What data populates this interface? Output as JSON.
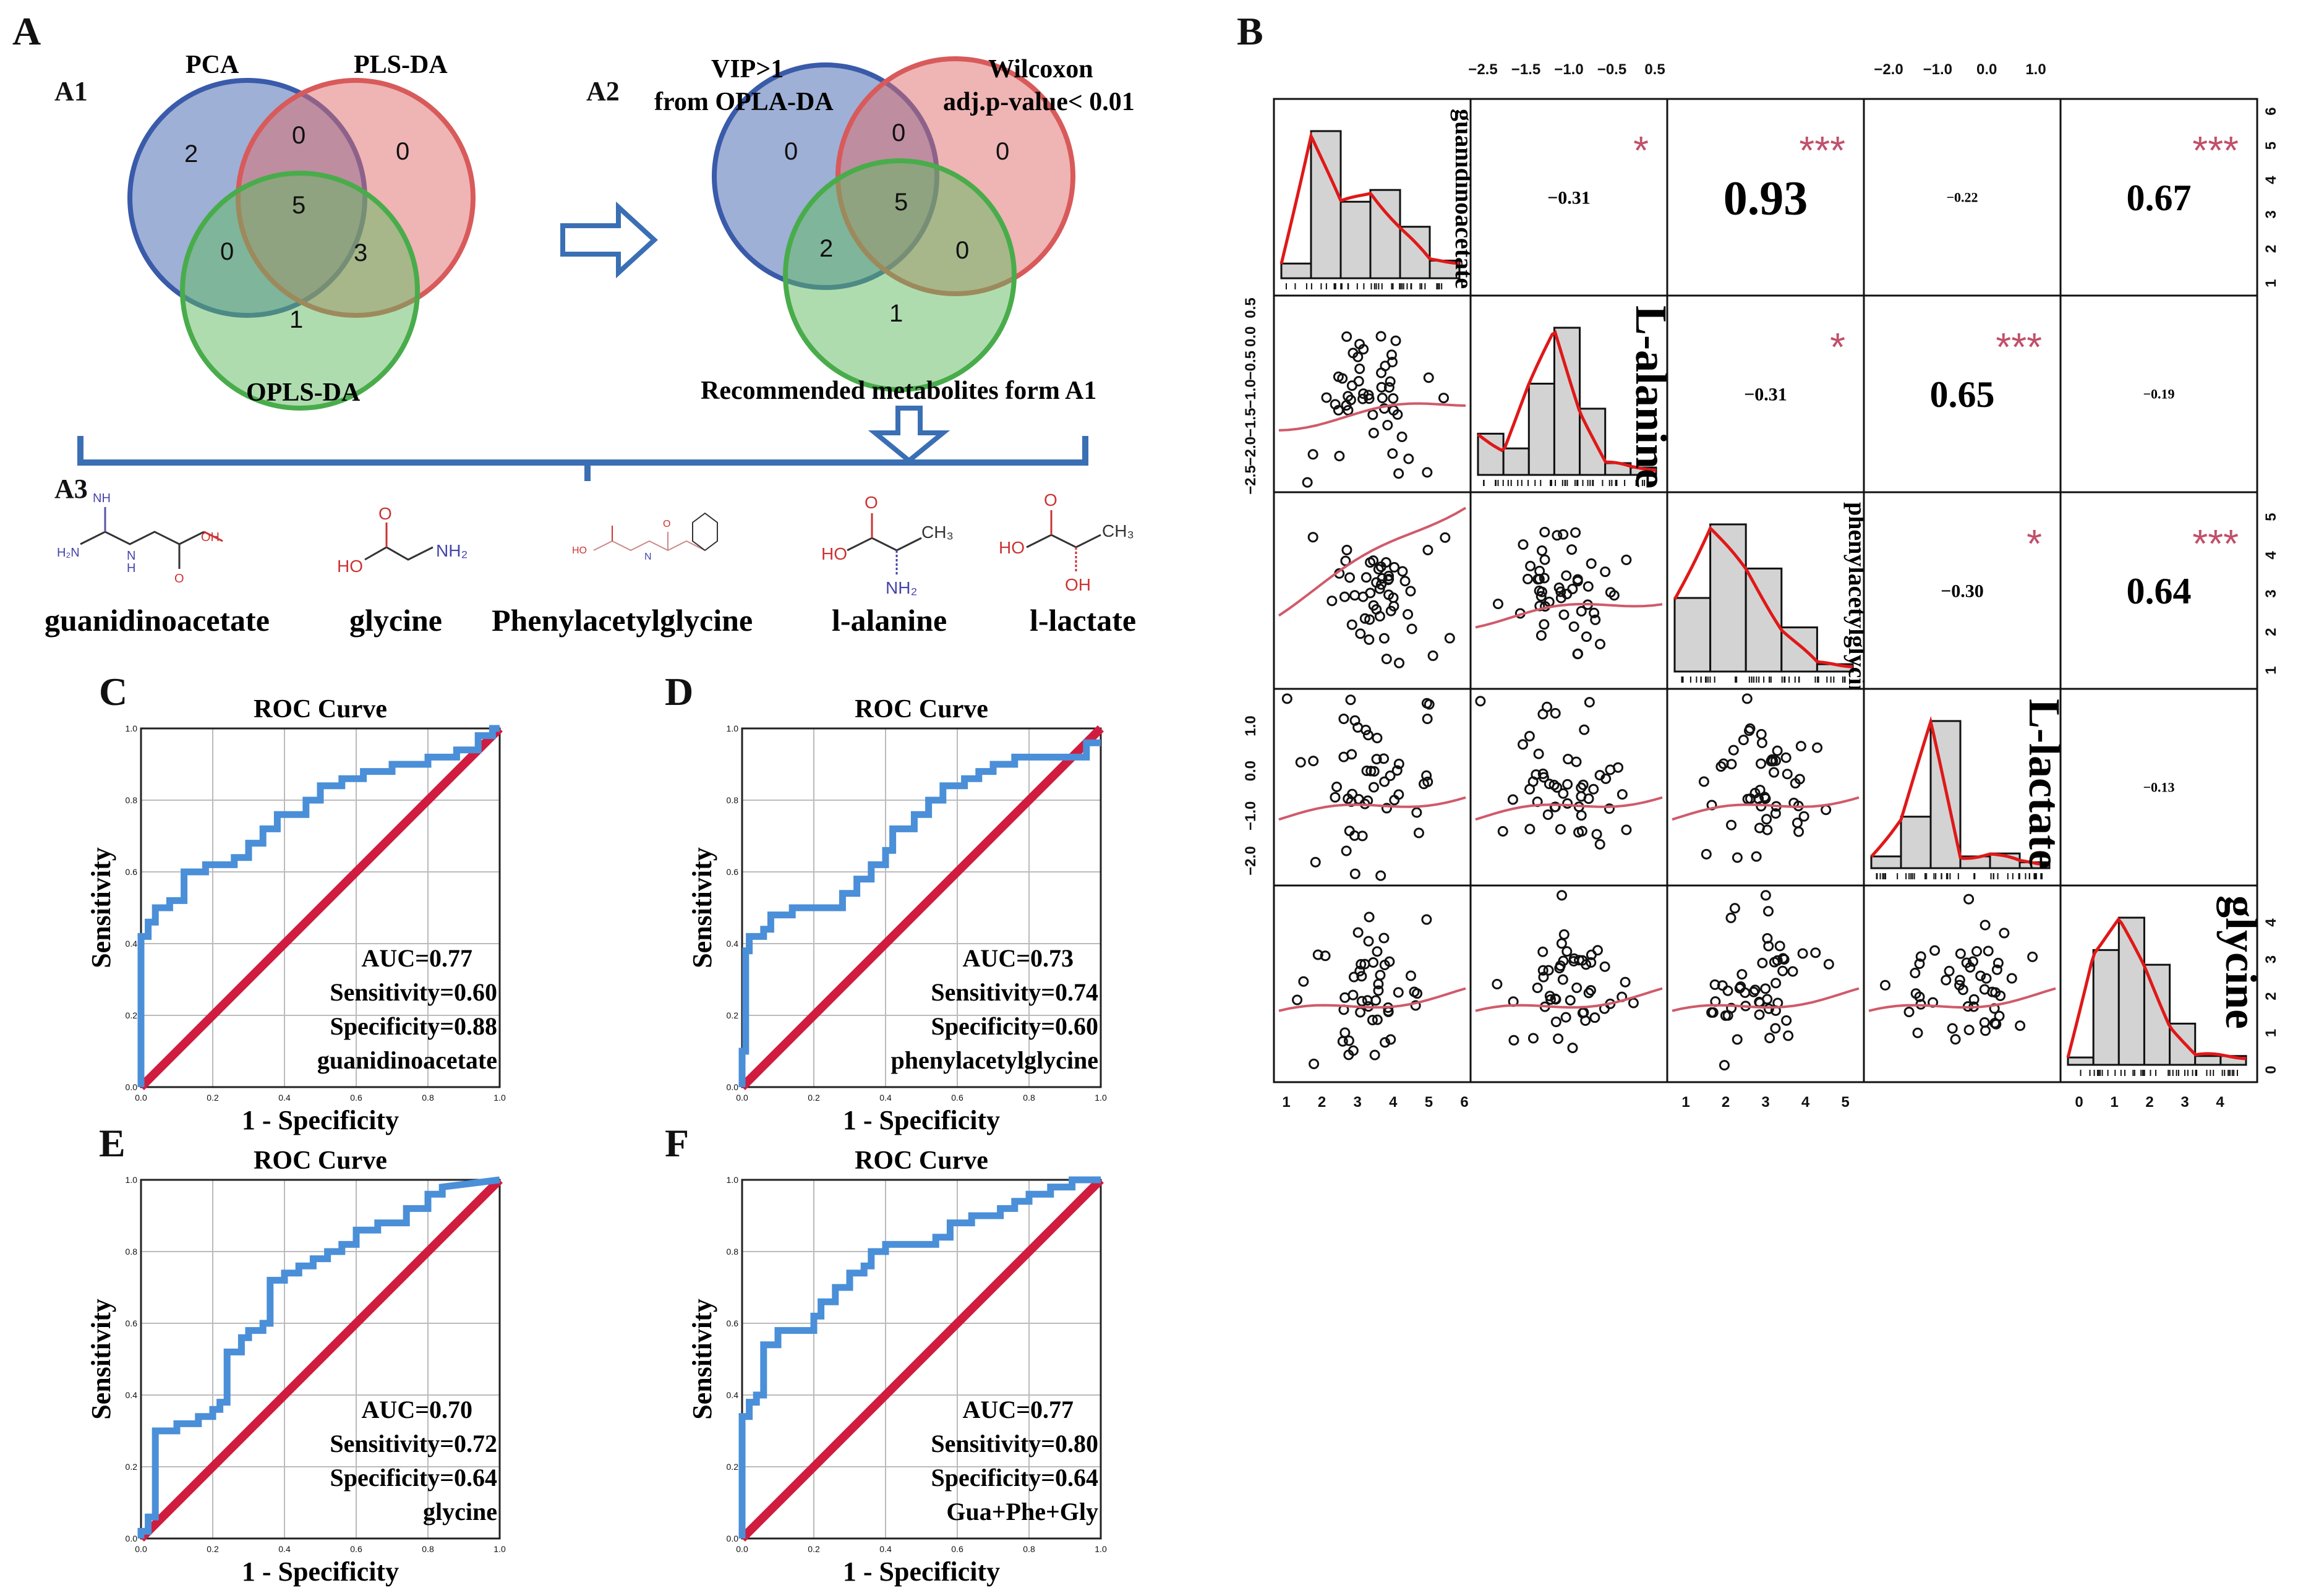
{
  "panels": {
    "A": "A",
    "A1": "A1",
    "A2": "A2",
    "A3": "A3",
    "B": "B",
    "C": "C",
    "D": "D",
    "E": "E",
    "F": "F"
  },
  "venn1": {
    "labels": {
      "pca": "PCA",
      "plsda": "PLS-DA",
      "oplsda": "OPLS-DA"
    },
    "counts": {
      "pca_only": "2",
      "pca_pls": "0",
      "pls_only": "0",
      "center": "5",
      "pca_opls": "0",
      "pls_opls": "3",
      "opls_only": "1"
    }
  },
  "venn2": {
    "labels": {
      "vip_line1": "VIP>1",
      "vip_line2": "from OPLA-DA",
      "wil_line1": "Wilcoxon",
      "wil_line2": "adj.p-value< 0.01",
      "rec": "Recommended metabolites form A1"
    },
    "counts": {
      "vip_only": "0",
      "vip_wil": "0",
      "wil_only": "0",
      "center": "5",
      "vip_rec": "2",
      "wil_rec": "0",
      "rec_only": "1"
    }
  },
  "metabolites": [
    "guanidinoacetate",
    "glycine",
    "Phenylacetylglycine",
    "l-alanine",
    "l-lactate"
  ],
  "struct_labels": {
    "nh": "NH",
    "h2n": "H₂N",
    "n": "N",
    "h": "H",
    "oh": "OH",
    "o": "O",
    "nh2": "NH₂",
    "ho": "HO",
    "ch3": "CH₃"
  },
  "roc_common": {
    "title": "ROC Curve",
    "xlabel": "1 - Specificity",
    "ylabel": "Sensitivity",
    "ticks": [
      "0.0",
      "0.2",
      "0.4",
      "0.6",
      "0.8",
      "1.0"
    ]
  },
  "roc": [
    {
      "panel": "C",
      "auc": "AUC=0.77",
      "sens": "Sensitivity=0.60",
      "spec": "Specificity=0.88",
      "name": "guanidinoacetate",
      "x": [
        0,
        0,
        0.02,
        0.02,
        0.04,
        0.04,
        0.08,
        0.08,
        0.12,
        0.12,
        0.18,
        0.18,
        0.26,
        0.26,
        0.3,
        0.3,
        0.34,
        0.34,
        0.38,
        0.38,
        0.46,
        0.46,
        0.5,
        0.5,
        0.56,
        0.56,
        0.62,
        0.62,
        0.7,
        0.7,
        0.8,
        0.8,
        0.88,
        0.88,
        0.94,
        0.94,
        0.98,
        0.98,
        1.0
      ],
      "y": [
        0,
        0.42,
        0.42,
        0.46,
        0.46,
        0.5,
        0.5,
        0.52,
        0.52,
        0.6,
        0.6,
        0.62,
        0.62,
        0.64,
        0.64,
        0.68,
        0.68,
        0.72,
        0.72,
        0.76,
        0.76,
        0.8,
        0.8,
        0.84,
        0.84,
        0.86,
        0.86,
        0.88,
        0.88,
        0.9,
        0.9,
        0.92,
        0.92,
        0.94,
        0.94,
        0.98,
        0.98,
        1.0,
        1.0
      ]
    },
    {
      "panel": "D",
      "auc": "AUC=0.73",
      "sens": "Sensitivity=0.74",
      "spec": "Specificity=0.60",
      "name": "phenylacetylglycine",
      "x": [
        0,
        0,
        0.01,
        0.01,
        0.02,
        0.02,
        0.06,
        0.06,
        0.08,
        0.08,
        0.14,
        0.14,
        0.28,
        0.28,
        0.32,
        0.32,
        0.36,
        0.36,
        0.4,
        0.4,
        0.42,
        0.42,
        0.48,
        0.48,
        0.52,
        0.52,
        0.56,
        0.56,
        0.62,
        0.62,
        0.66,
        0.66,
        0.7,
        0.7,
        0.76,
        0.76,
        0.96,
        0.96,
        1.0
      ],
      "y": [
        0,
        0.1,
        0.1,
        0.38,
        0.38,
        0.42,
        0.42,
        0.44,
        0.44,
        0.48,
        0.48,
        0.5,
        0.5,
        0.54,
        0.54,
        0.58,
        0.58,
        0.62,
        0.62,
        0.66,
        0.66,
        0.72,
        0.72,
        0.76,
        0.76,
        0.8,
        0.8,
        0.84,
        0.84,
        0.86,
        0.86,
        0.88,
        0.88,
        0.9,
        0.9,
        0.92,
        0.92,
        0.96,
        0.96
      ]
    },
    {
      "panel": "E",
      "auc": "AUC=0.70",
      "sens": "Sensitivity=0.72",
      "spec": "Specificity=0.64",
      "name": "glycine",
      "x": [
        0,
        0,
        0.02,
        0.02,
        0.04,
        0.04,
        0.1,
        0.1,
        0.16,
        0.16,
        0.2,
        0.2,
        0.22,
        0.22,
        0.24,
        0.24,
        0.28,
        0.28,
        0.3,
        0.3,
        0.34,
        0.34,
        0.36,
        0.36,
        0.4,
        0.4,
        0.44,
        0.44,
        0.48,
        0.48,
        0.52,
        0.52,
        0.56,
        0.56,
        0.6,
        0.6,
        0.66,
        0.66,
        0.74,
        0.74,
        0.8,
        0.8,
        0.84,
        0.84,
        1.0
      ],
      "y": [
        0,
        0.02,
        0.02,
        0.06,
        0.06,
        0.3,
        0.3,
        0.32,
        0.32,
        0.34,
        0.34,
        0.36,
        0.36,
        0.38,
        0.38,
        0.52,
        0.52,
        0.56,
        0.56,
        0.58,
        0.58,
        0.6,
        0.6,
        0.72,
        0.72,
        0.74,
        0.74,
        0.76,
        0.76,
        0.78,
        0.78,
        0.8,
        0.8,
        0.82,
        0.82,
        0.86,
        0.86,
        0.88,
        0.88,
        0.92,
        0.92,
        0.96,
        0.96,
        0.98,
        1.0
      ]
    },
    {
      "panel": "F",
      "auc": "AUC=0.77",
      "sens": "Sensitivity=0.80",
      "spec": "Specificity=0.64",
      "name": "Gua+Phe+Gly",
      "x": [
        0,
        0,
        0.02,
        0.02,
        0.04,
        0.04,
        0.06,
        0.06,
        0.1,
        0.1,
        0.2,
        0.2,
        0.22,
        0.22,
        0.26,
        0.26,
        0.3,
        0.3,
        0.34,
        0.34,
        0.36,
        0.36,
        0.4,
        0.4,
        0.54,
        0.54,
        0.58,
        0.58,
        0.64,
        0.64,
        0.72,
        0.72,
        0.76,
        0.76,
        0.8,
        0.8,
        0.86,
        0.86,
        0.92,
        0.92,
        1.0
      ],
      "y": [
        0,
        0.34,
        0.34,
        0.38,
        0.38,
        0.4,
        0.4,
        0.54,
        0.54,
        0.58,
        0.58,
        0.62,
        0.62,
        0.66,
        0.66,
        0.7,
        0.7,
        0.74,
        0.74,
        0.76,
        0.76,
        0.8,
        0.8,
        0.82,
        0.82,
        0.84,
        0.84,
        0.88,
        0.88,
        0.9,
        0.9,
        0.92,
        0.92,
        0.94,
        0.94,
        0.96,
        0.96,
        0.98,
        0.98,
        1.0,
        1.0
      ]
    }
  ],
  "matrix": {
    "vars": [
      "guanidinoacetate",
      "L-alanine",
      "phenylacetylglycine",
      "L-lactate",
      "glycine"
    ],
    "correlations": [
      {
        "row": 0,
        "col": 1,
        "value": "−0.31",
        "stars": "*",
        "size": "small"
      },
      {
        "row": 0,
        "col": 2,
        "value": "0.93",
        "stars": "***",
        "size": "huge"
      },
      {
        "row": 0,
        "col": 3,
        "value": "−0.22",
        "stars": "",
        "size": "tiny"
      },
      {
        "row": 0,
        "col": 4,
        "value": "0.67",
        "stars": "***",
        "size": "large"
      },
      {
        "row": 1,
        "col": 2,
        "value": "−0.31",
        "stars": "*",
        "size": "small"
      },
      {
        "row": 1,
        "col": 3,
        "value": "0.65",
        "stars": "***",
        "size": "large"
      },
      {
        "row": 1,
        "col": 4,
        "value": "−0.19",
        "stars": "",
        "size": "tiny"
      },
      {
        "row": 2,
        "col": 3,
        "value": "−0.30",
        "stars": "*",
        "size": "small"
      },
      {
        "row": 2,
        "col": 4,
        "value": "0.64",
        "stars": "***",
        "size": "large"
      },
      {
        "row": 3,
        "col": 4,
        "value": "−0.13",
        "stars": "",
        "size": "tiny"
      }
    ],
    "top_axis_alanine": [
      "−2.5",
      "−1.5",
      "−1.0",
      "−0.5",
      "0.5"
    ],
    "top_axis_lactate": [
      "−2.0",
      "−1.0",
      "0.0",
      "1.0"
    ],
    "right_axis_guan": [
      "1",
      "2",
      "3",
      "4",
      "5",
      "6"
    ],
    "right_axis_phen": [
      "1",
      "2",
      "3",
      "4",
      "5"
    ],
    "left_axis_alanine": [
      "−2.5",
      "−2.0",
      "−1.5",
      "−1.0",
      "−0.5",
      "0.0",
      "0.5"
    ],
    "left_axis_lactate": [
      "−2.0",
      "−1.0",
      "0.0",
      "1.0"
    ],
    "bottom_axis_guan": [
      "1",
      "2",
      "3",
      "4",
      "5",
      "6"
    ],
    "bottom_axis_phen": [
      "1",
      "2",
      "3",
      "4",
      "5"
    ],
    "bottom_axis_glycine": [
      "0",
      "1",
      "2",
      "3",
      "4"
    ],
    "right_axis_glycine": [
      "0",
      "1",
      "2",
      "3",
      "4"
    ]
  }
}
